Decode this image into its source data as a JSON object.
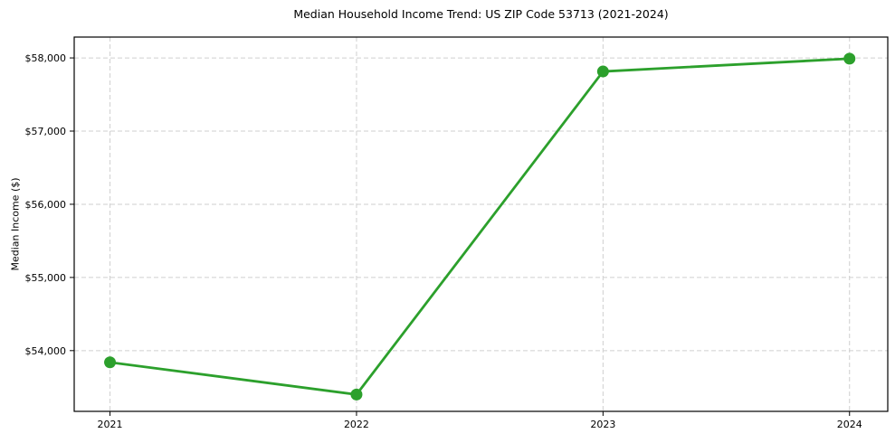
{
  "chart_data": {
    "type": "line",
    "title": "Median Household Income Trend: US ZIP Code 53713 (2021-2024)",
    "xlabel": "",
    "ylabel": "Median Income ($)",
    "categories": [
      "2021",
      "2022",
      "2023",
      "2024"
    ],
    "series": [
      {
        "name": "median-household-income",
        "values": [
          53840,
          53400,
          57815,
          57990
        ],
        "color": "#2ca02c",
        "line_width": 2.8,
        "marker": "circle",
        "marker_radius": 6.5
      }
    ],
    "ylim": [
      53170,
      58285
    ],
    "yticks": {
      "values": [
        54000,
        55000,
        56000,
        57000,
        58000
      ],
      "labels": [
        "$54,000",
        "$55,000",
        "$56,000",
        "$57,000",
        "$58,000"
      ]
    },
    "xtick_labels": [
      "2021",
      "2022",
      "2023",
      "2024"
    ],
    "grid": true,
    "grid_style": "dashed",
    "legend_position": "none",
    "colors": {
      "grid": "#cfcfcf",
      "spine": "#000000",
      "text": "#000000",
      "background": "#ffffff"
    }
  }
}
